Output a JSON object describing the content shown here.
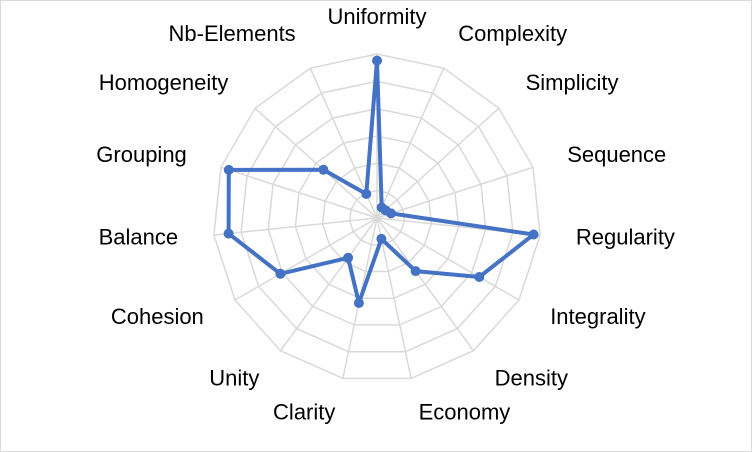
{
  "chart_data": {
    "type": "radar",
    "categories": [
      "Uniformity",
      "Complexity",
      "Simplicity",
      "Sequence",
      "Regularity",
      "Integrality",
      "Density",
      "Economy",
      "Clarity",
      "Unity",
      "Cohesion",
      "Balance",
      "Grouping",
      "Homogeneity",
      "Nb-Elements"
    ],
    "series": [
      {
        "values": [
          0.96,
          0.07,
          0.07,
          0.09,
          0.96,
          0.72,
          0.4,
          0.13,
          0.53,
          0.3,
          0.68,
          0.91,
          0.95,
          0.44,
          0.16
        ]
      }
    ],
    "rlim": [
      0,
      1
    ],
    "rings": 6,
    "grid": true,
    "legend": "none"
  },
  "colors": {
    "series": "#4472c4",
    "grid": "#d9d9d9",
    "text": "#000000"
  }
}
